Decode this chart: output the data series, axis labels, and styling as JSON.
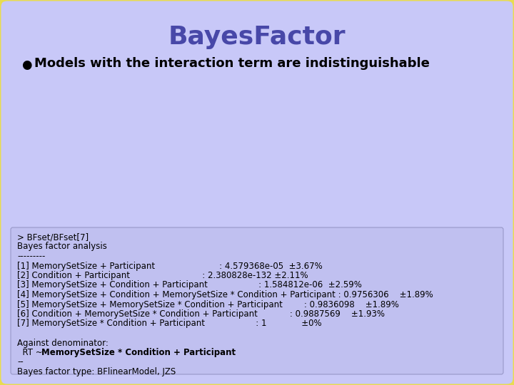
{
  "title": "BayesFactor",
  "title_color": "#4848a8",
  "bullet_char": "●",
  "bullet_text": "Models with the interaction term are indistinguishable",
  "separator": "---------",
  "code_lines": [
    "> BFset/BFset[7]",
    "Bayes factor analysis",
    "---------",
    "[1] MemorySetSize + Participant                        : 4.579368e-05  ±3.67%",
    "[2] Condition + Participant                           : 2.380828e-132 ±2.11%",
    "[3] MemorySetSize + Condition + Participant                   : 1.584812e-06  ±2.59%",
    "[4] MemorySetSize + Condition + MemorySetSize * Condition + Participant : 0.9756306    ±1.89%",
    "[5] MemorySetSize + MemorySetSize * Condition + Participant        : 0.9836098    ±1.89%",
    "[6] Condition + MemorySetSize * Condition + Participant            : 0.9887569    ±1.93%",
    "[7] MemorySetSize * Condition + Participant                   : 1             ±0%",
    "",
    "Against denominator:",
    "  RT ~ MemorySetSize * Condition + Participant",
    "--",
    "Bayes factor type: BFlinearModel, JZS"
  ],
  "bold_line_index": 12,
  "bold_prefix": "  RT ~ ",
  "bold_suffix": "MemorySetSize * Condition + Participant",
  "bg_outer": "#ffffff",
  "bg_slide": "#c8c8f8",
  "border_color": "#e8dc50",
  "code_box_color": "#c0c0f0",
  "title_fontsize": 26,
  "bullet_fontsize": 13,
  "code_fontsize": 8.5,
  "border_linewidth": 5
}
